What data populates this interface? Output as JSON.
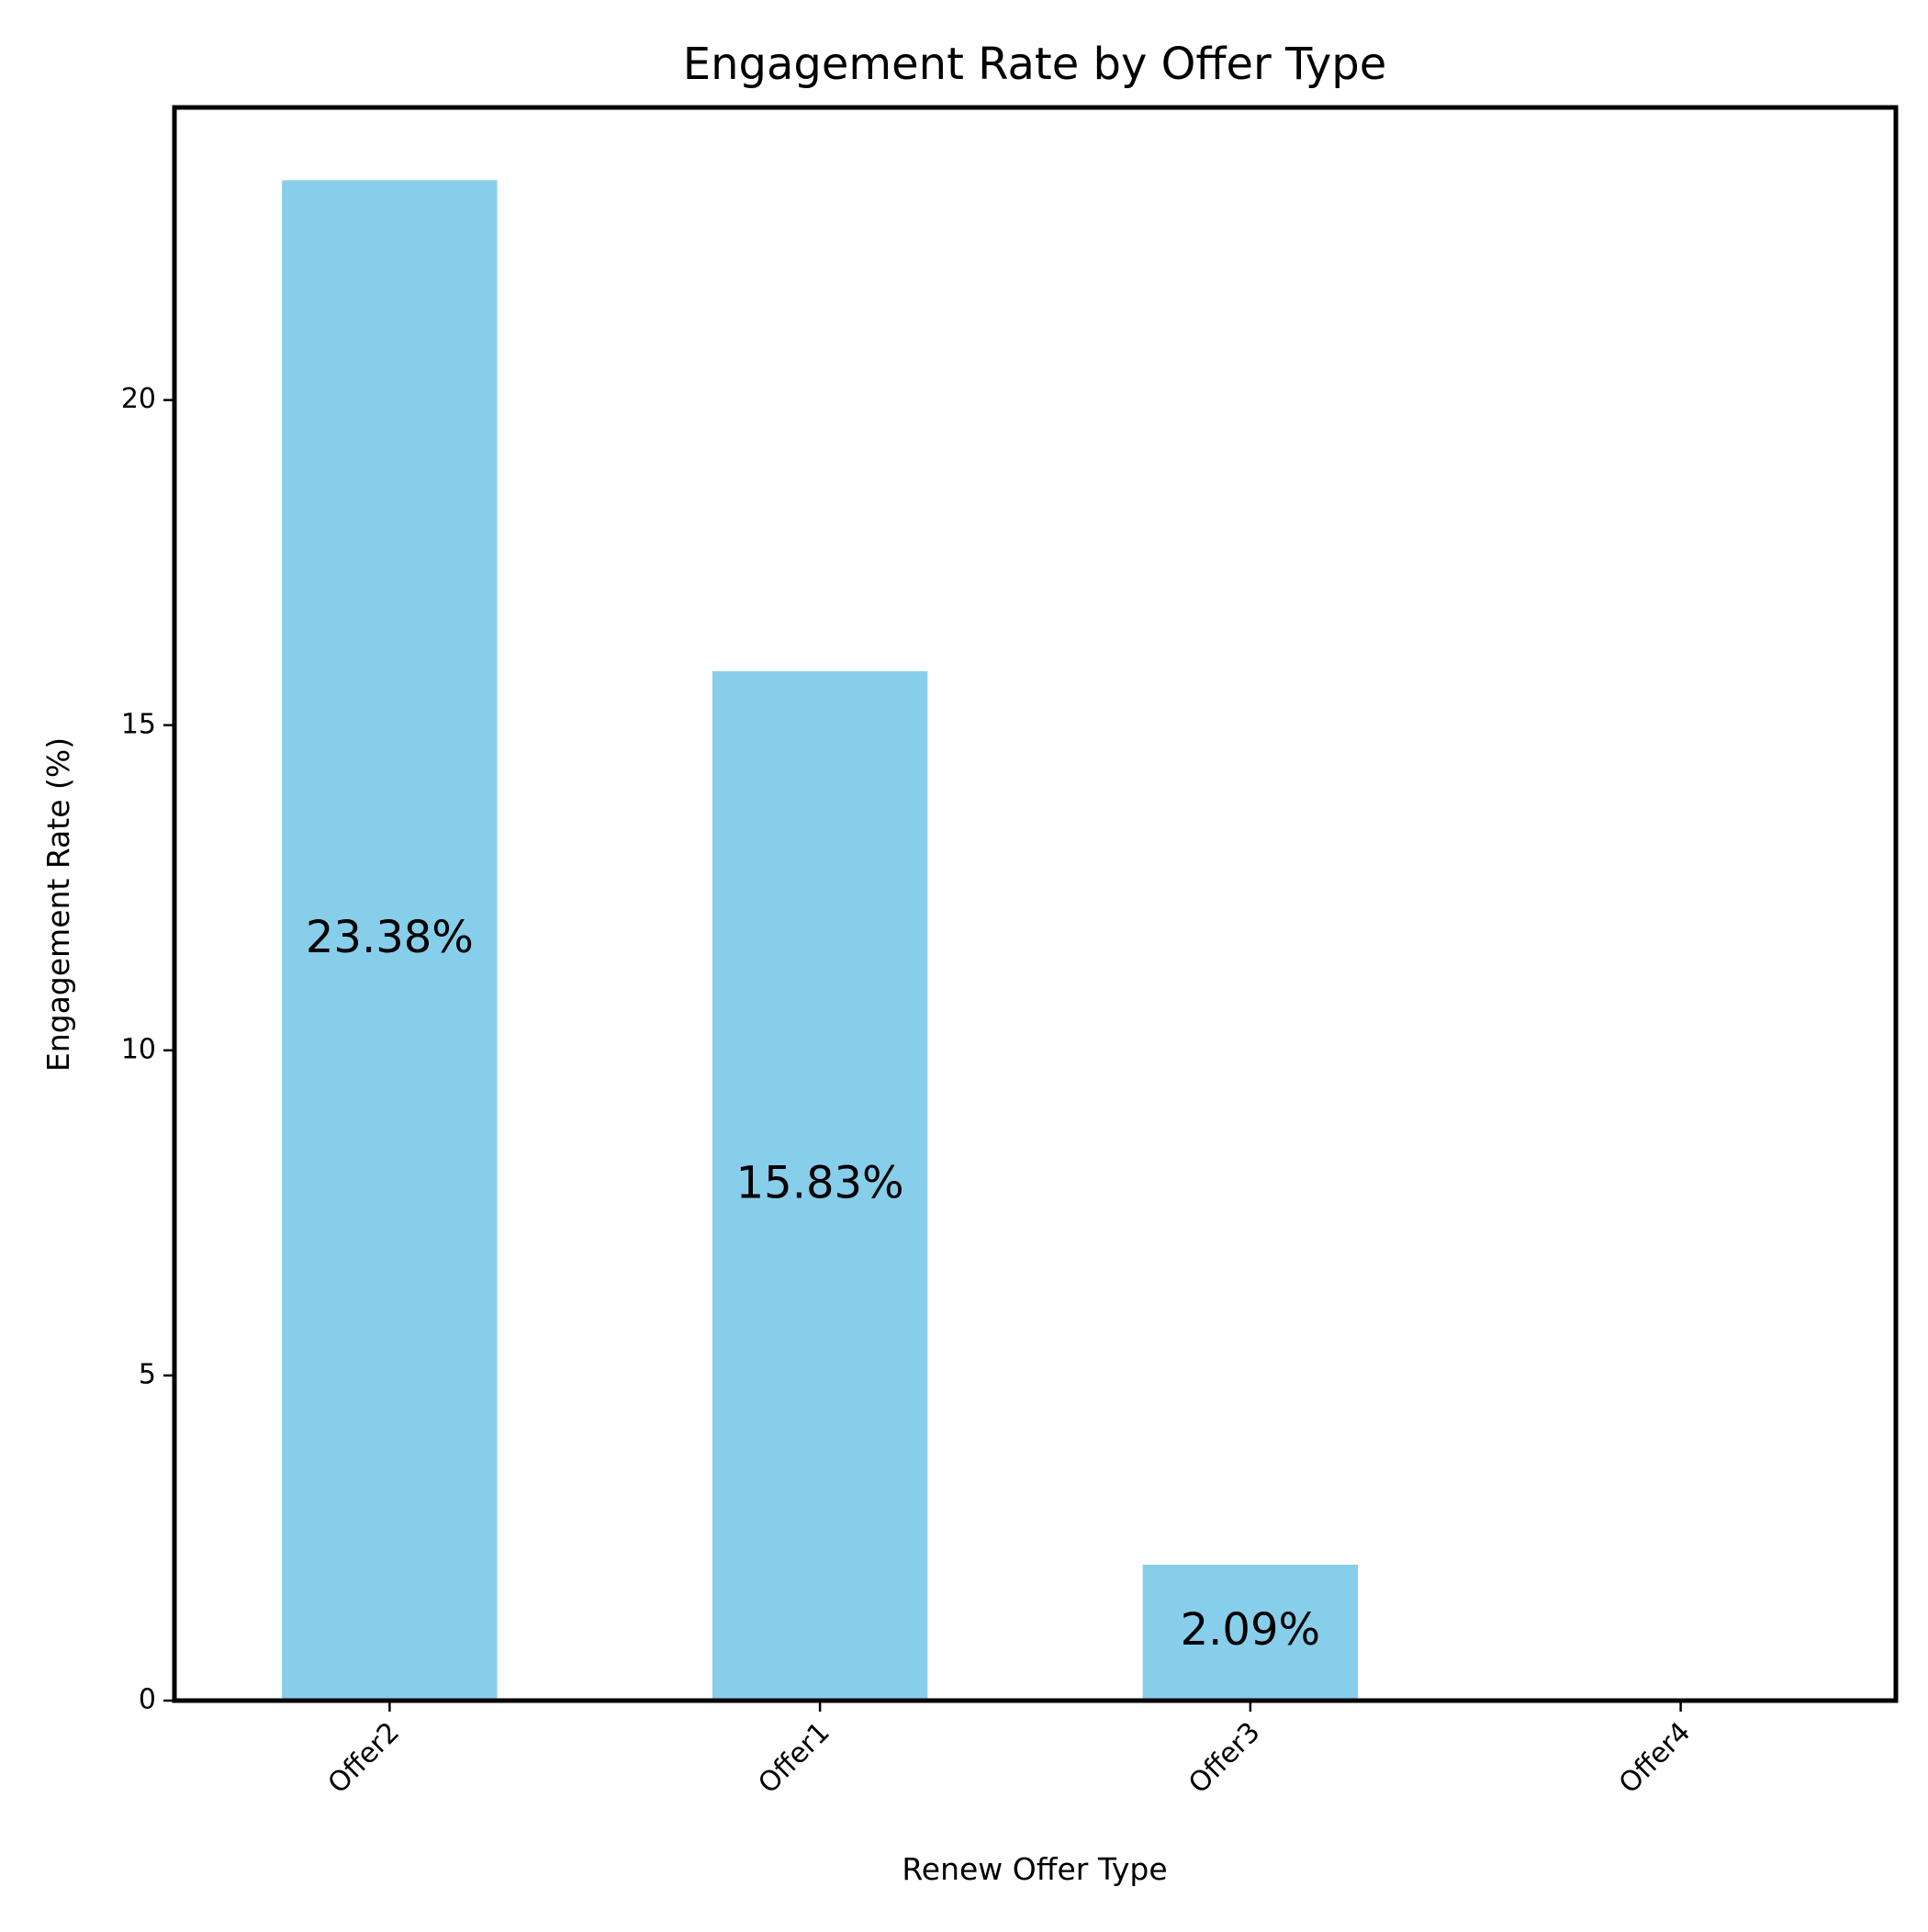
{
  "chart_data": {
    "type": "bar",
    "title": "Engagement Rate by Offer Type",
    "xlabel": "Renew Offer Type",
    "ylabel": "Engagement Rate (%)",
    "categories": [
      "Offer2",
      "Offer1",
      "Offer3",
      "Offer4"
    ],
    "values": [
      23.38,
      15.83,
      2.09,
      0
    ],
    "value_labels": [
      "23.38%",
      "15.83%",
      "2.09%",
      ""
    ],
    "ylim": [
      0,
      24.5
    ],
    "yticks": [
      0,
      5,
      10,
      15,
      20
    ],
    "ytick_labels": [
      "0",
      "5",
      "10",
      "15",
      "20"
    ],
    "bar_color": "#87CEEB",
    "grid": false,
    "legend": "none"
  }
}
